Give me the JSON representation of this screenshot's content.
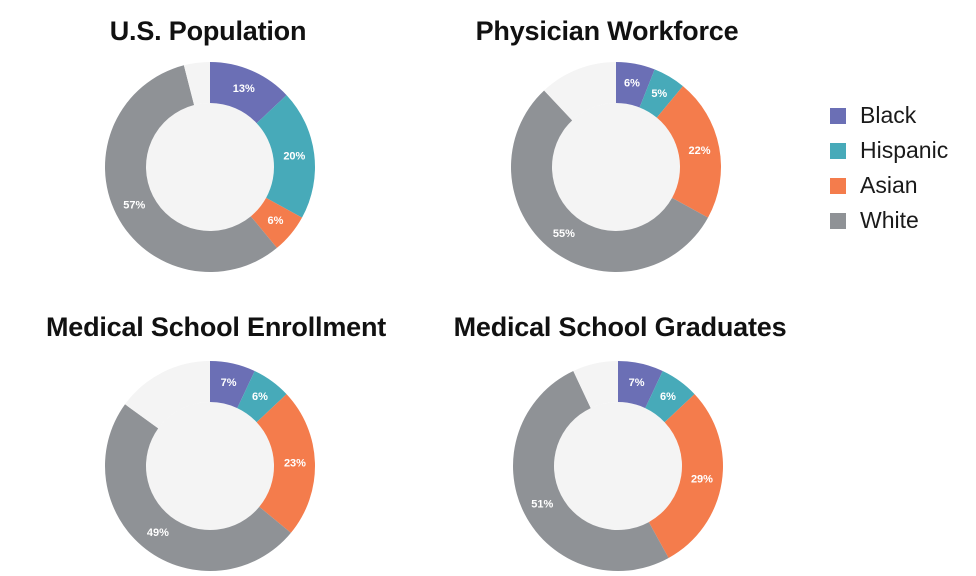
{
  "chart_data": [
    {
      "type": "pie",
      "title": "U.S. Population",
      "categories": [
        "Black",
        "Hispanic",
        "Asian",
        "White",
        "Other"
      ],
      "values": [
        13,
        20,
        6,
        57,
        4
      ],
      "labels": [
        "13%",
        "20%",
        "6%",
        "57%",
        ""
      ]
    },
    {
      "type": "pie",
      "title": "Physician Workforce",
      "categories": [
        "Black",
        "Hispanic",
        "Asian",
        "White",
        "Other"
      ],
      "values": [
        6,
        5,
        22,
        55,
        12
      ],
      "labels": [
        "6%",
        "5%",
        "22%",
        "55%",
        ""
      ]
    },
    {
      "type": "pie",
      "title": "Medical School Enrollment",
      "categories": [
        "Black",
        "Hispanic",
        "Asian",
        "White",
        "Other"
      ],
      "values": [
        7,
        6,
        23,
        49,
        15
      ],
      "labels": [
        "7%",
        "6%",
        "23%",
        "49%",
        ""
      ]
    },
    {
      "type": "pie",
      "title": "Medical School Graduates",
      "categories": [
        "Black",
        "Hispanic",
        "Asian",
        "White",
        "Other"
      ],
      "values": [
        7,
        6,
        29,
        51,
        7
      ],
      "labels": [
        "7%",
        "6%",
        "29%",
        "51%",
        ""
      ]
    }
  ],
  "legend": {
    "position": "right",
    "items": [
      {
        "label": "Black",
        "color": "#6b6fb5"
      },
      {
        "label": "Hispanic",
        "color": "#47aab9"
      },
      {
        "label": "Asian",
        "color": "#f47c4c"
      },
      {
        "label": "White",
        "color": "#8f9296"
      }
    ]
  },
  "colors": {
    "Black": "#6b6fb5",
    "Hispanic": "#47aab9",
    "Asian": "#f47c4c",
    "White": "#8f9296",
    "Other": "#f4f4f4",
    "hole": "#f4f4f4",
    "label_text": "#ffffff"
  }
}
